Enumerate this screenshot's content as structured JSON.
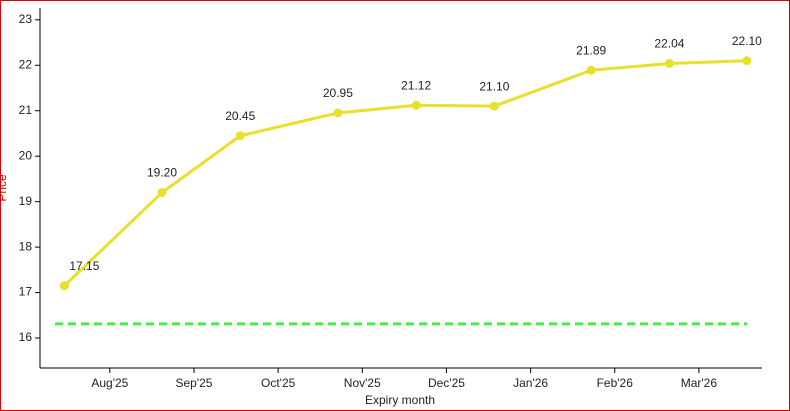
{
  "chart_data": {
    "type": "line",
    "x_label": "Expiry month",
    "y_label": "Price",
    "x": [
      7.46,
      8.62,
      9.55,
      10.71,
      11.64,
      12.57,
      13.72,
      14.65,
      15.57
    ],
    "series": [
      {
        "color": "#e8e02a",
        "values": [
          17.15,
          19.2,
          20.45,
          20.95,
          21.12,
          21.1,
          21.89,
          22.04,
          22.1
        ],
        "value_labels": [
          "17.15",
          "19.20",
          "20.45",
          "20.95",
          "21.12",
          "21.10",
          "21.89",
          "22.04",
          "22.10"
        ]
      }
    ],
    "reference_line": {
      "value": 16.31,
      "color": "#44ee44"
    },
    "xlim": [
      7.17,
      15.75
    ],
    "xticks": [
      {
        "value": 8,
        "label": "Aug'25"
      },
      {
        "value": 9,
        "label": "Sep'25"
      },
      {
        "value": 10,
        "label": "Oct'25"
      },
      {
        "value": 11,
        "label": "Nov'25"
      },
      {
        "value": 12,
        "label": "Dec'25"
      },
      {
        "value": 13,
        "label": "Jan'26"
      },
      {
        "value": 14,
        "label": "Feb'26"
      },
      {
        "value": 15,
        "label": "Mar'26"
      }
    ],
    "ylim": [
      15.34,
      23.26
    ],
    "yticks": [
      16,
      17,
      18,
      19,
      20,
      21,
      22,
      23
    ]
  }
}
